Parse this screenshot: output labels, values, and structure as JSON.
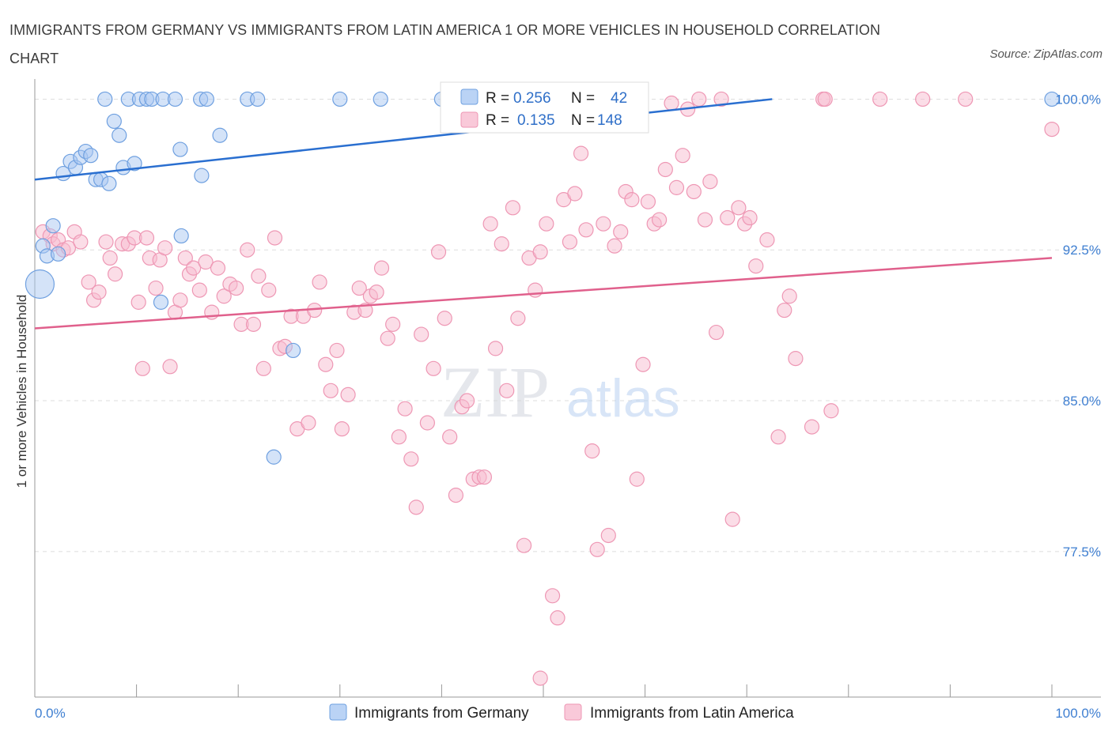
{
  "title": "IMMIGRANTS FROM GERMANY VS IMMIGRANTS FROM LATIN AMERICA 1 OR MORE VEHICLES IN HOUSEHOLD CORRELATION CHART",
  "source": "Source: ZipAtlas.com",
  "watermark": {
    "zip": "ZIP",
    "atlas": "atlas"
  },
  "legend": {
    "germany": {
      "r_label": "R =",
      "r_value": "0.256",
      "n_label": "N =",
      "n_value": "42"
    },
    "latam": {
      "r_label": "R =",
      "r_value": "0.135",
      "n_label": "N =",
      "n_value": "148"
    }
  },
  "bottom_legend": {
    "germany": "Immigrants from Germany",
    "latam": "Immigrants from Latin America"
  },
  "colors": {
    "germany_fill": "#a9c8f2",
    "germany_stroke": "#6fa0e0",
    "germany_line": "#2a6fd0",
    "latam_fill": "#f7bccf",
    "latam_stroke": "#ee97b4",
    "latam_line": "#e0608c",
    "axis_text": "#3f7fd1",
    "grid": "#dddddd"
  },
  "chart_data": {
    "type": "scatter",
    "title": "IMMIGRANTS FROM GERMANY VS IMMIGRANTS FROM LATIN AMERICA 1 OR MORE VEHICLES IN HOUSEHOLD CORRELATION CHART",
    "xlabel": "",
    "ylabel": "1 or more Vehicles in Household",
    "xlim": [
      0,
      100
    ],
    "ylim": [
      70.3,
      101.0
    ],
    "x_tick_labels": [
      "0.0%",
      "100.0%"
    ],
    "y_ticks": [
      77.5,
      85.0,
      92.5,
      100.0
    ],
    "y_tick_labels": [
      "77.5%",
      "85.0%",
      "92.5%",
      "100.0%"
    ],
    "grid": true,
    "legend_position": "top-center",
    "series": [
      {
        "name": "Immigrants from Germany",
        "trend": {
          "x": [
            0,
            72.5
          ],
          "y": [
            96.0,
            100.0
          ]
        },
        "points": [
          [
            0.5,
            90.8,
            18
          ],
          [
            0.8,
            92.7,
            9
          ],
          [
            1.2,
            92.2,
            9
          ],
          [
            1.8,
            93.7,
            9
          ],
          [
            2.3,
            92.3,
            9
          ],
          [
            2.8,
            96.3,
            9
          ],
          [
            3.5,
            96.9,
            9
          ],
          [
            4.0,
            96.6,
            9
          ],
          [
            4.5,
            97.1,
            9
          ],
          [
            5.0,
            97.4,
            9
          ],
          [
            5.5,
            97.2,
            9
          ],
          [
            6.0,
            96.0,
            9
          ],
          [
            6.5,
            96.0,
            9
          ],
          [
            7.3,
            95.8,
            9
          ],
          [
            7.8,
            98.9,
            9
          ],
          [
            8.3,
            98.2,
            9
          ],
          [
            8.7,
            96.6,
            9
          ],
          [
            9.8,
            96.8,
            9
          ],
          [
            6.9,
            100.0,
            9
          ],
          [
            9.2,
            100.0,
            9
          ],
          [
            10.3,
            100.0,
            9
          ],
          [
            11.0,
            100.0,
            9
          ],
          [
            11.5,
            100.0,
            9
          ],
          [
            12.6,
            100.0,
            9
          ],
          [
            13.8,
            100.0,
            9
          ],
          [
            16.3,
            100.0,
            9
          ],
          [
            16.9,
            100.0,
            9
          ],
          [
            20.9,
            100.0,
            9
          ],
          [
            21.9,
            100.0,
            9
          ],
          [
            30.0,
            100.0,
            9
          ],
          [
            34.0,
            100.0,
            9
          ],
          [
            40.0,
            100.0,
            9
          ],
          [
            100.0,
            100.0,
            9
          ],
          [
            14.3,
            97.5,
            9
          ],
          [
            16.4,
            96.2,
            9
          ],
          [
            18.2,
            98.2,
            9
          ],
          [
            14.4,
            93.2,
            9
          ],
          [
            12.4,
            89.9,
            9
          ],
          [
            25.4,
            87.5,
            9
          ],
          [
            23.5,
            82.2,
            9
          ],
          [
            44.0,
            99.4,
            9
          ],
          [
            48.0,
            99.5,
            9
          ]
        ]
      },
      {
        "name": "Immigrants from Latin America",
        "trend": {
          "x": [
            0,
            100
          ],
          "y": [
            88.6,
            92.1
          ]
        },
        "points": [
          [
            0.8,
            93.4,
            9
          ],
          [
            1.5,
            93.2,
            9
          ],
          [
            1.8,
            92.8,
            9
          ],
          [
            2.3,
            93.0,
            9
          ],
          [
            2.8,
            92.5,
            9
          ],
          [
            3.3,
            92.6,
            9
          ],
          [
            3.9,
            93.4,
            9
          ],
          [
            4.5,
            92.9,
            9
          ],
          [
            5.3,
            90.9,
            9
          ],
          [
            5.8,
            90.0,
            9
          ],
          [
            6.3,
            90.4,
            9
          ],
          [
            7.0,
            92.9,
            9
          ],
          [
            7.4,
            92.1,
            9
          ],
          [
            7.9,
            91.3,
            9
          ],
          [
            8.6,
            92.8,
            9
          ],
          [
            9.2,
            92.8,
            9
          ],
          [
            9.8,
            93.1,
            9
          ],
          [
            10.2,
            89.9,
            9
          ],
          [
            10.6,
            86.6,
            9
          ],
          [
            11.0,
            93.1,
            9
          ],
          [
            11.3,
            92.1,
            9
          ],
          [
            11.9,
            90.6,
            9
          ],
          [
            12.3,
            92.0,
            9
          ],
          [
            12.8,
            92.6,
            9
          ],
          [
            13.3,
            86.7,
            9
          ],
          [
            13.8,
            89.4,
            9
          ],
          [
            14.3,
            90.0,
            9
          ],
          [
            14.8,
            92.1,
            9
          ],
          [
            15.2,
            91.3,
            9
          ],
          [
            15.6,
            91.6,
            9
          ],
          [
            16.2,
            90.5,
            9
          ],
          [
            16.8,
            91.9,
            9
          ],
          [
            17.4,
            89.4,
            9
          ],
          [
            18.0,
            91.6,
            9
          ],
          [
            18.6,
            90.2,
            9
          ],
          [
            19.2,
            90.8,
            9
          ],
          [
            19.8,
            90.6,
            9
          ],
          [
            20.3,
            88.8,
            9
          ],
          [
            20.9,
            92.5,
            9
          ],
          [
            21.5,
            88.8,
            9
          ],
          [
            22.0,
            91.2,
            9
          ],
          [
            22.5,
            86.6,
            9
          ],
          [
            23.0,
            90.5,
            9
          ],
          [
            23.6,
            93.1,
            9
          ],
          [
            24.1,
            87.6,
            9
          ],
          [
            24.6,
            87.7,
            9
          ],
          [
            25.2,
            89.2,
            9
          ],
          [
            25.8,
            83.6,
            9
          ],
          [
            26.4,
            89.2,
            9
          ],
          [
            26.9,
            83.9,
            9
          ],
          [
            27.5,
            89.5,
            9
          ],
          [
            28.0,
            90.9,
            9
          ],
          [
            28.6,
            86.8,
            9
          ],
          [
            29.1,
            85.5,
            9
          ],
          [
            29.7,
            87.5,
            9
          ],
          [
            30.2,
            83.6,
            9
          ],
          [
            30.8,
            85.3,
            9
          ],
          [
            31.4,
            89.4,
            9
          ],
          [
            31.9,
            90.6,
            9
          ],
          [
            32.5,
            89.5,
            9
          ],
          [
            33.0,
            90.2,
            9
          ],
          [
            33.6,
            90.4,
            9
          ],
          [
            34.1,
            91.6,
            9
          ],
          [
            34.7,
            88.1,
            9
          ],
          [
            35.2,
            88.8,
            9
          ],
          [
            35.8,
            83.2,
            9
          ],
          [
            36.4,
            84.6,
            9
          ],
          [
            37.0,
            82.1,
            9
          ],
          [
            37.5,
            79.7,
            9
          ],
          [
            38.0,
            88.3,
            9
          ],
          [
            38.6,
            83.9,
            9
          ],
          [
            39.2,
            86.6,
            9
          ],
          [
            39.7,
            92.4,
            9
          ],
          [
            40.3,
            89.1,
            9
          ],
          [
            40.8,
            83.2,
            9
          ],
          [
            41.4,
            80.3,
            9
          ],
          [
            42.0,
            84.7,
            9
          ],
          [
            42.5,
            85.0,
            9
          ],
          [
            43.1,
            81.1,
            9
          ],
          [
            43.7,
            81.2,
            9
          ],
          [
            44.2,
            81.2,
            9
          ],
          [
            44.8,
            93.8,
            9
          ],
          [
            45.3,
            87.6,
            9
          ],
          [
            45.9,
            92.8,
            9
          ],
          [
            46.4,
            85.5,
            9
          ],
          [
            47.0,
            94.6,
            9
          ],
          [
            47.5,
            89.1,
            9
          ],
          [
            48.1,
            77.8,
            9
          ],
          [
            48.6,
            92.1,
            9
          ],
          [
            49.2,
            90.5,
            9
          ],
          [
            49.7,
            92.4,
            9
          ],
          [
            50.3,
            93.8,
            9
          ],
          [
            50.9,
            75.3,
            9
          ],
          [
            51.4,
            74.2,
            9
          ],
          [
            52.0,
            95.0,
            9
          ],
          [
            52.6,
            92.9,
            9
          ],
          [
            53.1,
            95.3,
            9
          ],
          [
            53.7,
            97.3,
            9
          ],
          [
            54.2,
            93.5,
            9
          ],
          [
            54.8,
            82.5,
            9
          ],
          [
            55.3,
            77.6,
            9
          ],
          [
            55.9,
            93.8,
            9
          ],
          [
            56.4,
            78.3,
            9
          ],
          [
            57.0,
            92.7,
            9
          ],
          [
            57.6,
            93.4,
            9
          ],
          [
            58.1,
            95.4,
            9
          ],
          [
            58.7,
            95.0,
            9
          ],
          [
            59.2,
            81.1,
            9
          ],
          [
            59.8,
            86.8,
            9
          ],
          [
            60.3,
            94.9,
            9
          ],
          [
            60.9,
            93.8,
            9
          ],
          [
            61.4,
            94.0,
            9
          ],
          [
            62.0,
            96.5,
            9
          ],
          [
            62.6,
            99.8,
            9
          ],
          [
            63.1,
            95.6,
            9
          ],
          [
            63.7,
            97.2,
            9
          ],
          [
            64.2,
            99.5,
            9
          ],
          [
            64.8,
            95.4,
            9
          ],
          [
            65.3,
            100.0,
            9
          ],
          [
            65.9,
            94.0,
            9
          ],
          [
            66.4,
            95.9,
            9
          ],
          [
            67.0,
            88.4,
            9
          ],
          [
            67.5,
            100.0,
            9
          ],
          [
            68.1,
            94.1,
            9
          ],
          [
            68.6,
            79.1,
            9
          ],
          [
            69.2,
            94.6,
            9
          ],
          [
            69.8,
            93.8,
            9
          ],
          [
            70.3,
            94.1,
            9
          ],
          [
            70.9,
            91.7,
            9
          ],
          [
            72.0,
            93.0,
            9
          ],
          [
            73.1,
            83.2,
            9
          ],
          [
            73.7,
            89.5,
            9
          ],
          [
            74.2,
            90.2,
            9
          ],
          [
            74.8,
            87.1,
            9
          ],
          [
            76.4,
            83.7,
            9
          ],
          [
            77.5,
            100.0,
            9
          ],
          [
            77.7,
            100.0,
            9
          ],
          [
            78.3,
            84.5,
            9
          ],
          [
            83.1,
            100.0,
            9
          ],
          [
            87.3,
            100.0,
            9
          ],
          [
            91.5,
            100.0,
            9
          ],
          [
            100.0,
            98.5,
            9
          ],
          [
            49.7,
            71.2,
            9
          ]
        ]
      }
    ]
  }
}
